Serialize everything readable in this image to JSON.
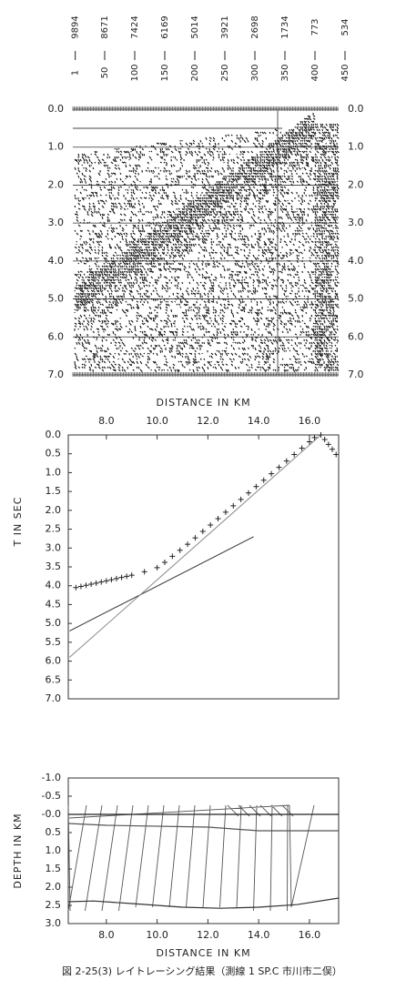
{
  "chart_data": [
    {
      "type": "seismic",
      "traces": [
        {
          "trace": 1,
          "offset": 9894
        },
        {
          "trace": 50,
          "offset": 8671
        },
        {
          "trace": 100,
          "offset": 7424
        },
        {
          "trace": 150,
          "offset": 6169
        },
        {
          "trace": 200,
          "offset": 5014
        },
        {
          "trace": 250,
          "offset": 3921
        },
        {
          "trace": 300,
          "offset": 2698
        },
        {
          "trace": 350,
          "offset": 1734
        },
        {
          "trace": 400,
          "offset": 773
        },
        {
          "trace": 450,
          "offset": 534
        }
      ],
      "ylim": [
        0,
        7
      ],
      "y_inverted": true,
      "yticks": [
        {
          "value": 0,
          "label": "0.0"
        },
        {
          "value": 1,
          "label": "1.0"
        },
        {
          "value": 2,
          "label": "2.0"
        },
        {
          "value": 3,
          "label": "3.0"
        },
        {
          "value": 4,
          "label": "4.0"
        },
        {
          "value": 5,
          "label": "5.0"
        },
        {
          "value": 6,
          "label": "6.0"
        },
        {
          "value": 7,
          "label": "7.0"
        }
      ],
      "grid": true
    },
    {
      "type": "scatter",
      "xlabel": "DISTANCE IN KM",
      "ylabel": "T IN SEC",
      "xlim": [
        6.5,
        17.15
      ],
      "ylim": [
        0,
        7
      ],
      "y_inverted": true,
      "xticks": [
        {
          "value": 8,
          "label": "8.0"
        },
        {
          "value": 10,
          "label": "10.0"
        },
        {
          "value": 12,
          "label": "12.0"
        },
        {
          "value": 14,
          "label": "14.0"
        },
        {
          "value": 16,
          "label": "16.0"
        }
      ],
      "yticks": [
        {
          "value": 0,
          "label": "0.0"
        },
        0.5,
        {
          "value": 1,
          "label": "1.0"
        },
        1.5,
        {
          "value": 2,
          "label": "2.0"
        },
        2.5,
        {
          "value": 3,
          "label": "3.0"
        },
        3.5,
        {
          "value": 4,
          "label": "4.0"
        },
        4.5,
        {
          "value": 5,
          "label": "5.0"
        },
        5.5,
        {
          "value": 6,
          "label": "6.0"
        },
        6.5,
        {
          "value": 7,
          "label": "7.0"
        }
      ],
      "points": {
        "color": "#222",
        "x": [
          6.8,
          7.0,
          7.2,
          7.4,
          7.6,
          7.8,
          8.0,
          8.2,
          8.4,
          8.6,
          8.8,
          9.0,
          9.5,
          10.0,
          10.3,
          10.6,
          10.9,
          11.2,
          11.5,
          11.8,
          12.1,
          12.4,
          12.7,
          13.0,
          13.3,
          13.6,
          13.9,
          14.2,
          14.5,
          14.8,
          15.1,
          15.4,
          15.7,
          16.0,
          16.2,
          16.45,
          16.6,
          16.75,
          16.9,
          17.05
        ],
        "y": [
          4.05,
          4.02,
          3.99,
          3.96,
          3.93,
          3.9,
          3.87,
          3.84,
          3.81,
          3.78,
          3.75,
          3.72,
          3.63,
          3.52,
          3.38,
          3.22,
          3.06,
          2.9,
          2.73,
          2.56,
          2.39,
          2.22,
          2.05,
          1.88,
          1.71,
          1.54,
          1.37,
          1.2,
          1.03,
          0.86,
          0.69,
          0.52,
          0.35,
          0.18,
          0.07,
          0.0,
          0.12,
          0.25,
          0.38,
          0.52
        ]
      },
      "lines": [
        {
          "color": "#333",
          "x": [
            6.55,
            13.8
          ],
          "y": [
            5.2,
            2.7
          ]
        },
        {
          "color": "#888",
          "x": [
            6.55,
            16.45
          ],
          "y": [
            5.9,
            0.0
          ]
        }
      ]
    },
    {
      "type": "line",
      "xlabel": "DISTANCE IN KM",
      "ylabel": "DEPTH IN KM",
      "xlim": [
        6.5,
        17.15
      ],
      "ylim": [
        -1,
        3
      ],
      "y_inverted": true,
      "xticks": [
        {
          "value": 8,
          "label": "8.0"
        },
        {
          "value": 10,
          "label": "10.0"
        },
        {
          "value": 12,
          "label": "12.0"
        },
        {
          "value": 14,
          "label": "14.0"
        },
        {
          "value": 16,
          "label": "16.0"
        }
      ],
      "yticks": [
        {
          "value": -1,
          "label": "-1.0"
        },
        -0.5,
        {
          "value": 0,
          "label": "-0.0"
        },
        0.5,
        {
          "value": 1,
          "label": "1.0"
        },
        1.5,
        {
          "value": 2,
          "label": "2.0"
        },
        2.5,
        {
          "value": 3,
          "label": "3.0"
        }
      ],
      "series": [
        {
          "color": "#222",
          "x": [
            6.5,
            17.15
          ],
          "y": [
            0,
            0
          ]
        },
        {
          "color": "#555",
          "x": [
            6.5,
            8,
            12,
            14,
            15.5,
            17.15
          ],
          "y": [
            0.25,
            0.3,
            0.35,
            0.45,
            0.45,
            0.45
          ]
        },
        {
          "color": "#333",
          "x": [
            6.5,
            7.5,
            9,
            11,
            12.5,
            14,
            15.5,
            17.15
          ],
          "y": [
            2.4,
            2.38,
            2.45,
            2.55,
            2.58,
            2.55,
            2.48,
            2.3
          ]
        }
      ]
    }
  ],
  "caption": "図 2-25(3) レイトレーシング結果（測線 1 SP.C 市川市二俣）"
}
